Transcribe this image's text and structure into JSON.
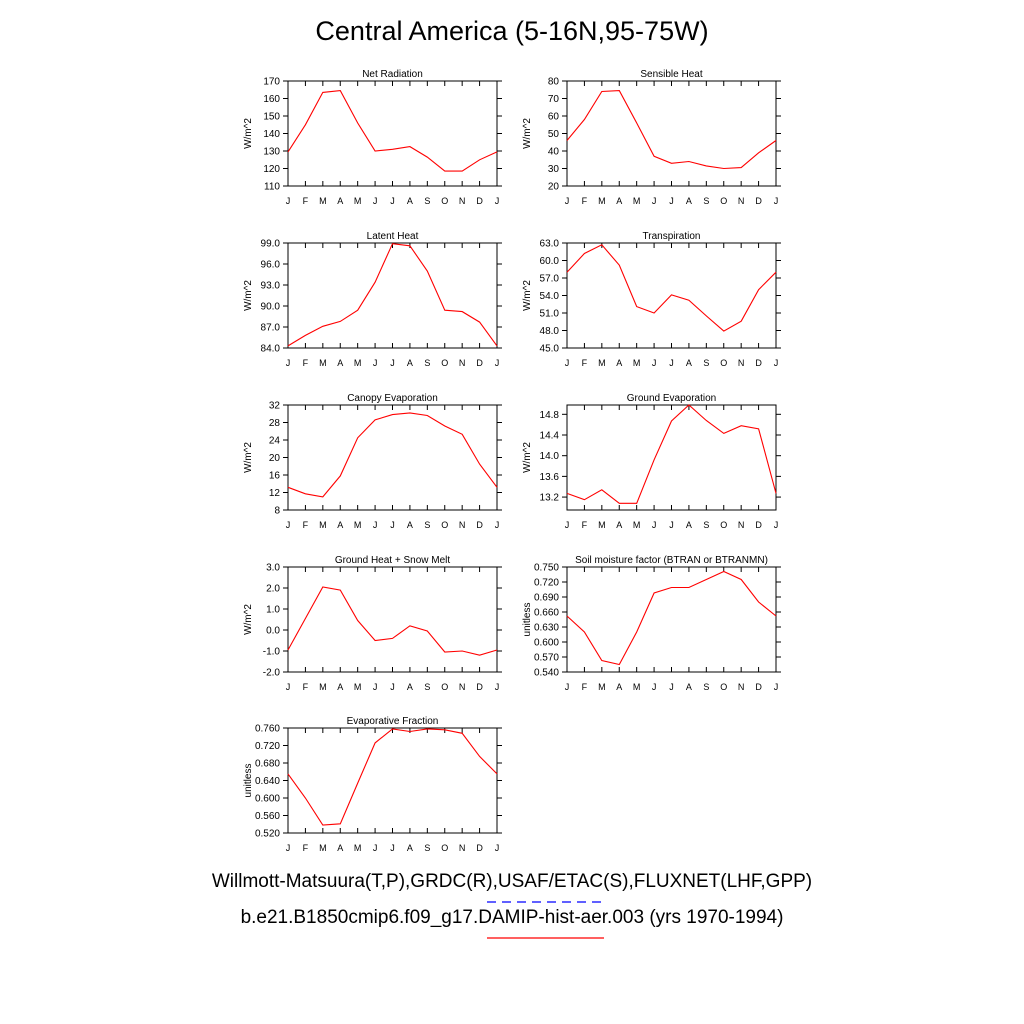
{
  "title": "Central America (5-16N,95-75W)",
  "footer": {
    "obs_label": "Willmott-Matsuura(T,P),GRDC(R),USAF/ETAC(S),FLUXNET(LHF,GPP)",
    "model_label": "b.e21.B1850cmip6.f09_g17.DAMIP-hist-aer.003 (yrs 1970-1994)",
    "obs_line_color": "#0000ff",
    "model_line_color": "#ff0000"
  },
  "chart_data": [
    {
      "type": "line",
      "title": "Net Radiation",
      "ylabel": "W/m^2",
      "x": [
        "J",
        "F",
        "M",
        "A",
        "M",
        "J",
        "J",
        "A",
        "S",
        "O",
        "N",
        "D",
        "J"
      ],
      "ylim": [
        110,
        170
      ],
      "yticks": [
        "110",
        "120",
        "130",
        "140",
        "150",
        "160",
        "170"
      ],
      "series": [
        {
          "color": "#ff0000",
          "values": [
            129.5,
            145,
            163.5,
            164.5,
            146,
            130,
            131,
            132.5,
            126.5,
            118.5,
            118.5,
            125,
            129.5
          ]
        }
      ]
    },
    {
      "type": "line",
      "title": "Sensible Heat",
      "ylabel": "W/m^2",
      "x": [
        "J",
        "F",
        "M",
        "A",
        "M",
        "J",
        "J",
        "A",
        "S",
        "O",
        "N",
        "D",
        "J"
      ],
      "ylim": [
        20,
        80
      ],
      "yticks": [
        "20",
        "30",
        "40",
        "50",
        "60",
        "70",
        "80"
      ],
      "series": [
        {
          "color": "#ff0000",
          "values": [
            46,
            58,
            74,
            74.5,
            56,
            37,
            33,
            34,
            31.5,
            30,
            30.5,
            39,
            46
          ]
        }
      ]
    },
    {
      "type": "line",
      "title": "Latent Heat",
      "ylabel": "W/m^2",
      "x": [
        "J",
        "F",
        "M",
        "A",
        "M",
        "J",
        "J",
        "A",
        "S",
        "O",
        "N",
        "D",
        "J"
      ],
      "ylim": [
        84,
        99
      ],
      "yticks": [
        "84.0",
        "87.0",
        "90.0",
        "93.0",
        "96.0",
        "99.0"
      ],
      "series": [
        {
          "color": "#ff0000",
          "values": [
            84.3,
            85.8,
            87.1,
            87.8,
            89.4,
            93.4,
            98.9,
            98.6,
            95.0,
            89.4,
            89.2,
            87.7,
            84.3
          ]
        }
      ]
    },
    {
      "type": "line",
      "title": "Transpiration",
      "ylabel": "W/m^2",
      "x": [
        "J",
        "F",
        "M",
        "A",
        "M",
        "J",
        "J",
        "A",
        "S",
        "O",
        "N",
        "D",
        "J"
      ],
      "ylim": [
        45,
        63
      ],
      "yticks": [
        "45.0",
        "48.0",
        "51.0",
        "54.0",
        "57.0",
        "60.0",
        "63.0"
      ],
      "series": [
        {
          "color": "#ff0000",
          "values": [
            58,
            61.2,
            62.7,
            59.2,
            52.1,
            51,
            54.1,
            53.2,
            50.5,
            47.9,
            49.6,
            55,
            58
          ]
        }
      ]
    },
    {
      "type": "line",
      "title": "Canopy Evaporation",
      "ylabel": "W/m^2",
      "x": [
        "J",
        "F",
        "M",
        "A",
        "M",
        "J",
        "J",
        "A",
        "S",
        "O",
        "N",
        "D",
        "J"
      ],
      "ylim": [
        8,
        32
      ],
      "yticks": [
        "8",
        "12",
        "16",
        "20",
        "24",
        "28",
        "32"
      ],
      "series": [
        {
          "color": "#ff0000",
          "values": [
            13.2,
            11.7,
            11,
            15.8,
            24.5,
            28.6,
            29.8,
            30.2,
            29.6,
            27.2,
            25.3,
            18.5,
            13.2
          ]
        }
      ]
    },
    {
      "type": "line",
      "title": "Ground Evaporation",
      "ylabel": "W/m^2",
      "x": [
        "J",
        "F",
        "M",
        "A",
        "M",
        "J",
        "J",
        "A",
        "S",
        "O",
        "N",
        "D",
        "J"
      ],
      "ylim": [
        12.95,
        14.98
      ],
      "yticks": [
        "13.2",
        "13.6",
        "14.0",
        "14.4",
        "14.8"
      ],
      "series": [
        {
          "color": "#ff0000",
          "values": [
            13.27,
            13.15,
            13.34,
            13.08,
            13.08,
            13.92,
            14.67,
            14.98,
            14.68,
            14.43,
            14.58,
            14.52,
            13.27
          ]
        }
      ]
    },
    {
      "type": "line",
      "title": "Ground Heat + Snow Melt",
      "ylabel": "W/m^2",
      "x": [
        "J",
        "F",
        "M",
        "A",
        "M",
        "J",
        "J",
        "A",
        "S",
        "O",
        "N",
        "D",
        "J"
      ],
      "ylim": [
        -2,
        3
      ],
      "yticks": [
        "-2.0",
        "-1.0",
        "0.0",
        "1.0",
        "2.0",
        "3.0"
      ],
      "series": [
        {
          "color": "#ff0000",
          "values": [
            -0.95,
            0.55,
            2.05,
            1.9,
            0.45,
            -0.5,
            -0.4,
            0.2,
            -0.05,
            -1.05,
            -1,
            -1.2,
            -0.95
          ]
        }
      ]
    },
    {
      "type": "line",
      "title": "Soil moisture factor (BTRAN or BTRANMN)",
      "ylabel": "unitless",
      "x": [
        "J",
        "F",
        "M",
        "A",
        "M",
        "J",
        "J",
        "A",
        "S",
        "O",
        "N",
        "D",
        "J"
      ],
      "ylim": [
        0.54,
        0.75
      ],
      "yticks": [
        "0.540",
        "0.570",
        "0.600",
        "0.630",
        "0.660",
        "0.690",
        "0.720",
        "0.750"
      ],
      "series": [
        {
          "color": "#ff0000",
          "values": [
            0.652,
            0.62,
            0.563,
            0.555,
            0.62,
            0.698,
            0.709,
            0.709,
            0.725,
            0.741,
            0.725,
            0.68,
            0.652
          ]
        }
      ]
    },
    {
      "type": "line",
      "title": "Evaporative Fraction",
      "ylabel": "unitless",
      "x": [
        "J",
        "F",
        "M",
        "A",
        "M",
        "J",
        "J",
        "A",
        "S",
        "O",
        "N",
        "D",
        "J"
      ],
      "ylim": [
        0.52,
        0.76
      ],
      "yticks": [
        "0.520",
        "0.560",
        "0.600",
        "0.640",
        "0.680",
        "0.720",
        "0.760"
      ],
      "series": [
        {
          "color": "#ff0000",
          "values": [
            0.655,
            0.6,
            0.538,
            0.541,
            0.634,
            0.726,
            0.758,
            0.752,
            0.758,
            0.756,
            0.748,
            0.695,
            0.655
          ]
        }
      ]
    }
  ]
}
